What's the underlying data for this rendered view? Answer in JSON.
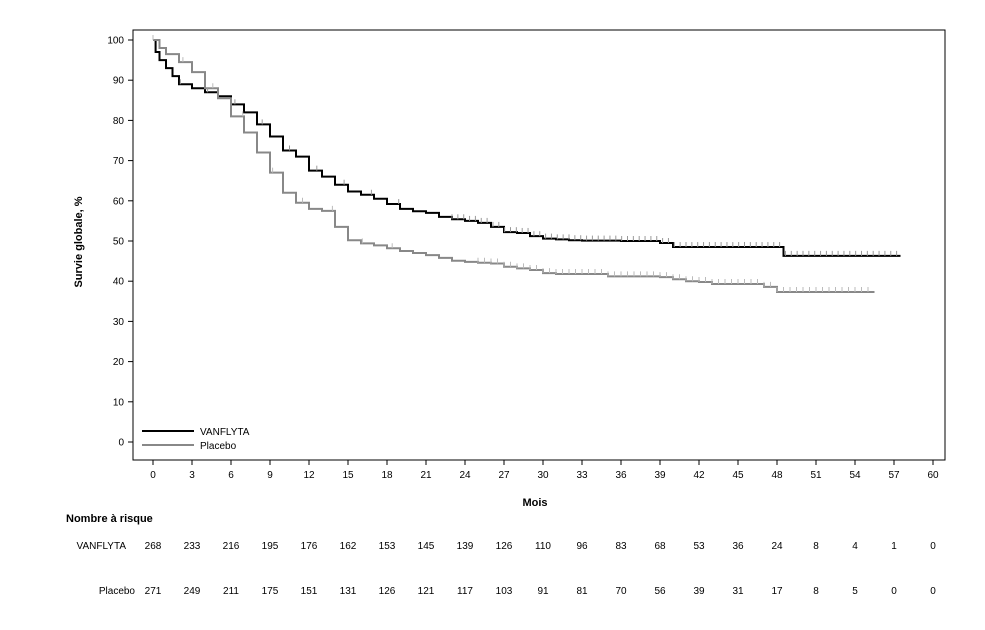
{
  "chart_data": {
    "type": "line",
    "xlabel": "Mois",
    "ylabel": "Survie globale, %",
    "xlim": [
      0,
      60
    ],
    "ylim": [
      0,
      100
    ],
    "x_ticks": [
      "0",
      "3",
      "6",
      "9",
      "12",
      "15",
      "18",
      "21",
      "24",
      "27",
      "30",
      "33",
      "36",
      "39",
      "42",
      "45",
      "48",
      "51",
      "54",
      "57",
      "60"
    ],
    "y_ticks": [
      "0",
      "10",
      "20",
      "30",
      "40",
      "50",
      "60",
      "70",
      "80",
      "90",
      "100"
    ],
    "grid": false,
    "legend_position": "bottom-left",
    "series": [
      {
        "name": "VANFLYTA",
        "color": "#000000",
        "points": [
          [
            0,
            100
          ],
          [
            0.2,
            97
          ],
          [
            0.5,
            95
          ],
          [
            1,
            93
          ],
          [
            1.5,
            91
          ],
          [
            2,
            89
          ],
          [
            3,
            88
          ],
          [
            4,
            87
          ],
          [
            5,
            86
          ],
          [
            6,
            84
          ],
          [
            7,
            82
          ],
          [
            8,
            79
          ],
          [
            9,
            76
          ],
          [
            10,
            72.5
          ],
          [
            11,
            71
          ],
          [
            12,
            67.5
          ],
          [
            13,
            66
          ],
          [
            14,
            64
          ],
          [
            15,
            62.3
          ],
          [
            16,
            61.5
          ],
          [
            17,
            60.5
          ],
          [
            18,
            59.2
          ],
          [
            19,
            58
          ],
          [
            20,
            57.4
          ],
          [
            21,
            57
          ],
          [
            22,
            56
          ],
          [
            23,
            55.4
          ],
          [
            24,
            55
          ],
          [
            25,
            54.5
          ],
          [
            26,
            53.5
          ],
          [
            27,
            52.2
          ],
          [
            28,
            52
          ],
          [
            29,
            51.2
          ],
          [
            30,
            50.6
          ],
          [
            31,
            50.4
          ],
          [
            32,
            50.2
          ],
          [
            33,
            50.1
          ],
          [
            36,
            50
          ],
          [
            39,
            49.5
          ],
          [
            40,
            48.5
          ],
          [
            42,
            48.5
          ],
          [
            45,
            48.5
          ],
          [
            48,
            48.5
          ],
          [
            48.5,
            46.3
          ],
          [
            51,
            46.3
          ],
          [
            54,
            46.3
          ],
          [
            57.5,
            46.3
          ]
        ]
      },
      {
        "name": "Placebo",
        "color": "#888888",
        "points": [
          [
            0,
            100
          ],
          [
            0.5,
            98
          ],
          [
            1,
            96.5
          ],
          [
            2,
            94.5
          ],
          [
            3,
            92
          ],
          [
            4,
            88
          ],
          [
            5,
            85.5
          ],
          [
            6,
            81
          ],
          [
            7,
            77
          ],
          [
            8,
            72
          ],
          [
            9,
            67
          ],
          [
            10,
            62
          ],
          [
            11,
            59.5
          ],
          [
            12,
            58
          ],
          [
            13,
            57.5
          ],
          [
            14,
            53.5
          ],
          [
            15,
            50.2
          ],
          [
            16,
            49.4
          ],
          [
            17,
            48.9
          ],
          [
            18,
            48.2
          ],
          [
            19,
            47.5
          ],
          [
            20,
            47
          ],
          [
            21,
            46.5
          ],
          [
            22,
            45.8
          ],
          [
            23,
            45.1
          ],
          [
            24,
            44.8
          ],
          [
            25,
            44.6
          ],
          [
            26,
            44.4
          ],
          [
            27,
            43.6
          ],
          [
            28,
            43.2
          ],
          [
            29,
            42.8
          ],
          [
            30,
            42
          ],
          [
            31,
            41.8
          ],
          [
            33,
            41.8
          ],
          [
            35,
            41.2
          ],
          [
            36,
            41.2
          ],
          [
            39,
            41
          ],
          [
            40,
            40.5
          ],
          [
            41,
            40
          ],
          [
            42,
            39.8
          ],
          [
            43,
            39.3
          ],
          [
            45,
            39.3
          ],
          [
            47,
            38.6
          ],
          [
            48,
            37.3
          ],
          [
            51,
            37.3
          ],
          [
            54,
            37.3
          ],
          [
            55.5,
            37.3
          ]
        ]
      }
    ],
    "risk_table": {
      "title": "Nombre à risque",
      "rows": [
        {
          "label": "VANFLYTA",
          "values": [
            "268",
            "233",
            "216",
            "195",
            "176",
            "162",
            "153",
            "145",
            "139",
            "126",
            "110",
            "96",
            "83",
            "68",
            "53",
            "36",
            "24",
            "8",
            "4",
            "1",
            "0"
          ]
        },
        {
          "label": "Placebo",
          "values": [
            "271",
            "249",
            "211",
            "175",
            "151",
            "131",
            "126",
            "121",
            "117",
            "103",
            "91",
            "81",
            "70",
            "56",
            "39",
            "31",
            "17",
            "8",
            "5",
            "0",
            "0"
          ]
        }
      ]
    }
  }
}
